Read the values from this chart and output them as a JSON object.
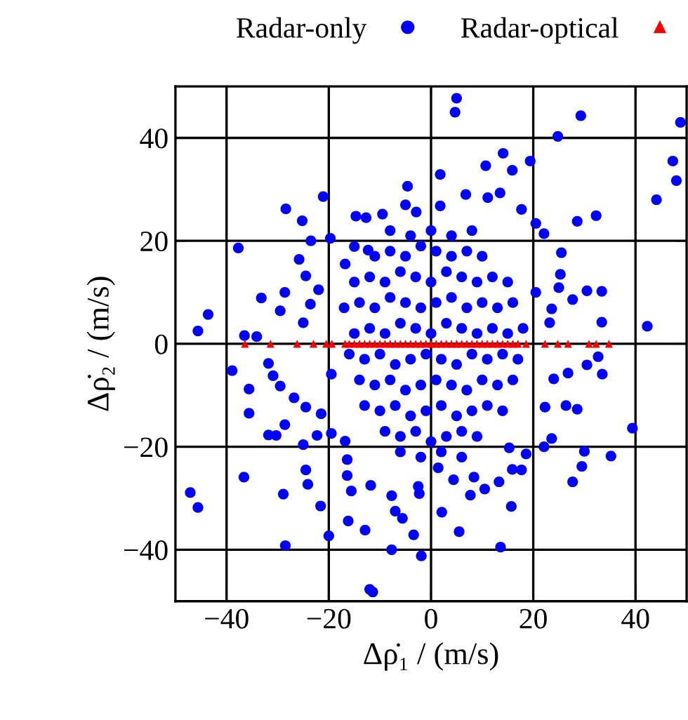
{
  "chart_data": {
    "type": "scatter",
    "xlabel": "Δρ̇₁ / (m/s)",
    "ylabel": "Δρ̇₂ / (m/s)",
    "xlim": [
      -50,
      50
    ],
    "ylim": [
      -50,
      50
    ],
    "xticks": [
      -40,
      -20,
      0,
      20,
      40
    ],
    "yticks": [
      -40,
      -20,
      0,
      20,
      40
    ],
    "grid": true,
    "legend": "top",
    "series": [
      {
        "name": "Radar-only",
        "color": "#0000ff",
        "marker": "circle",
        "x": [
          5,
          4.7,
          29.3,
          48.8,
          24.8,
          14.1,
          19.4,
          10.7,
          15.9,
          47.3,
          48,
          1.8,
          -4.6,
          -21.1,
          -28.4,
          -25.2,
          44.1,
          6.8,
          11.1,
          13.5,
          17.7,
          32.3,
          28.6,
          -37.7,
          -23.5,
          -19.7,
          -14.7,
          -12.7,
          -9.5,
          -5,
          -2.9,
          1.8,
          20.5,
          22.1,
          -25.8,
          25.5,
          25.3,
          25,
          30.5,
          27.7,
          33.4,
          33.4,
          42.3,
          -33.2,
          -29.5,
          -28.6,
          -43.6,
          -45.6,
          -36.5,
          -34.1,
          -24.5,
          -22,
          -25,
          -23.6,
          -16.8,
          -15,
          -12.3,
          23.6,
          20.5,
          23.2,
          -38.9,
          -35.6,
          -35.6,
          -31.8,
          -30.9,
          -28.6,
          -31.8,
          -30.3,
          -36.6,
          -47.1,
          -45.6,
          -28.9,
          -28.5,
          -24.5,
          -24.1,
          -21.6,
          -20,
          -16.2,
          -12.9,
          -16.4,
          -16.4,
          -15.6,
          -11.8,
          -7.7,
          -7,
          -5.6,
          -3.4,
          -7.7,
          -1.9,
          -12,
          -11.4,
          2.1,
          5.5,
          13.6,
          15.7,
          10.5,
          7.7,
          13.3,
          15.9,
          17.7,
          8.4,
          4.4,
          -2.3,
          -2.5,
          1.4,
          27.7,
          29.5,
          30,
          35.2,
          39.4,
          28.6,
          26.4,
          23.6,
          22.1,
          22.3,
          24,
          26.8,
          30.5,
          33.5,
          32.7,
          18.6,
          15.3,
          -16.8,
          -19.5,
          -22.3,
          -25,
          -21.5,
          -24.5,
          -26.8,
          -29.5,
          -19.5,
          -15,
          -12,
          -9,
          -6,
          -3,
          0,
          3,
          6,
          9,
          12,
          15,
          18,
          -16,
          -13,
          -10,
          -7,
          -4,
          -1,
          2,
          5,
          8,
          11,
          14,
          17,
          -17,
          -14,
          -11,
          -8,
          -5,
          -2,
          1,
          4,
          7,
          10,
          13,
          16,
          -14,
          -11,
          -8,
          -5,
          -2,
          1,
          4,
          7,
          10,
          13,
          16,
          -15,
          -12,
          -9,
          -6,
          -3,
          0,
          3,
          6,
          9,
          12,
          15,
          -13,
          -10,
          -7,
          -4,
          -1,
          2,
          5,
          8,
          11,
          14,
          -11,
          -8,
          -5,
          -2,
          1,
          4,
          7,
          10,
          -9,
          -6,
          -3,
          0,
          3,
          6,
          9,
          -8,
          -4,
          0,
          4,
          8,
          -6,
          -2,
          2,
          6
        ],
        "values": [
          47.7,
          45,
          44.3,
          43,
          40.3,
          37,
          35.5,
          34.6,
          33.7,
          35.5,
          31.7,
          32.9,
          30.6,
          28.6,
          26.2,
          23.9,
          28,
          29,
          28.4,
          29.3,
          26.1,
          24.9,
          23.8,
          18.6,
          20,
          20.5,
          24.8,
          24.5,
          25.2,
          27,
          25.6,
          26.8,
          23.4,
          21.4,
          16.4,
          17.7,
          13.5,
          10.9,
          10.3,
          8.6,
          10.2,
          4.2,
          3.4,
          8.9,
          6.4,
          10,
          5.7,
          2.5,
          1.6,
          1.4,
          13.2,
          10.5,
          4.1,
          7.7,
          15.5,
          18.9,
          18.2,
          6.8,
          10,
          4.1,
          -5.2,
          -8.8,
          -13.5,
          -3.8,
          -6.2,
          -15.7,
          -17.7,
          -17.8,
          -25.9,
          -28.9,
          -31.8,
          -29.2,
          -39.2,
          -24.5,
          -27.3,
          -31.5,
          -37.3,
          -34.4,
          -36.2,
          -22.5,
          -25.6,
          -28.6,
          -27.5,
          -29.5,
          -32.5,
          -33.9,
          -37.1,
          -40,
          -41.2,
          -47.7,
          -48.2,
          -32.7,
          -36.5,
          -39.5,
          -31.6,
          -28.2,
          -29.4,
          -26.8,
          -24.4,
          -24.5,
          -25.9,
          -26.4,
          -29.1,
          -27.7,
          -24.1,
          -26.8,
          -23.8,
          -20.9,
          -21.8,
          -16.4,
          -12.7,
          -12,
          -18.4,
          -20,
          -12.3,
          -6.8,
          -5.7,
          -4.1,
          -5.9,
          -2.5,
          -21.4,
          -20.2,
          -18.9,
          -17.4,
          -17.8,
          -19.6,
          -13.6,
          -12.3,
          -10.5,
          -8.2,
          -5.9,
          2,
          3,
          2,
          4,
          3,
          2,
          4,
          3,
          2,
          3,
          2,
          3,
          -2,
          -3,
          -2,
          -4,
          -3,
          -2,
          -3,
          -4,
          -2,
          -3,
          -2,
          -3,
          7,
          8,
          7,
          9,
          8,
          7,
          8,
          9,
          7,
          8,
          7,
          8,
          -7,
          -8,
          -7,
          -9,
          -8,
          -7,
          -8,
          -9,
          -7,
          -8,
          -7,
          12,
          13,
          12,
          14,
          13,
          12,
          14,
          13,
          12,
          13,
          12,
          -12,
          -13,
          -12,
          -14,
          -13,
          -12,
          -14,
          -13,
          -12,
          -13,
          17,
          18,
          17,
          19,
          18,
          17,
          18,
          17,
          -17,
          -18,
          -17,
          -19,
          -18,
          -17,
          -18,
          22,
          21,
          22,
          21,
          22,
          -21,
          -22,
          -21,
          -22
        ]
      },
      {
        "name": "Radar-optical",
        "color": "#ff0000",
        "marker": "triangle",
        "x": [
          -36.4,
          -31.4,
          -26.2,
          -23,
          -20.5,
          -19.4,
          -16.8,
          -16,
          -15,
          -14,
          -13,
          -12,
          -11,
          -10,
          -9,
          -8,
          -7,
          -6,
          -5,
          -4,
          -3,
          -2,
          -1,
          0,
          1,
          2,
          3,
          4,
          5,
          6,
          7,
          8,
          9,
          10,
          11,
          12,
          13,
          14,
          15,
          16,
          17,
          18.6,
          22.3,
          24.8,
          26.8,
          30.9,
          32.3,
          34.8
        ],
        "values": [
          0,
          0,
          0,
          0,
          0,
          0,
          0,
          0,
          0,
          0,
          0,
          0,
          0,
          0,
          0,
          0,
          0,
          0,
          0,
          0,
          0,
          0,
          0,
          0,
          0,
          0,
          0,
          0,
          0,
          0,
          0,
          0,
          0,
          0,
          0,
          0,
          0,
          0,
          0,
          0,
          0,
          0,
          0,
          0,
          0,
          0,
          0,
          0
        ]
      }
    ]
  }
}
